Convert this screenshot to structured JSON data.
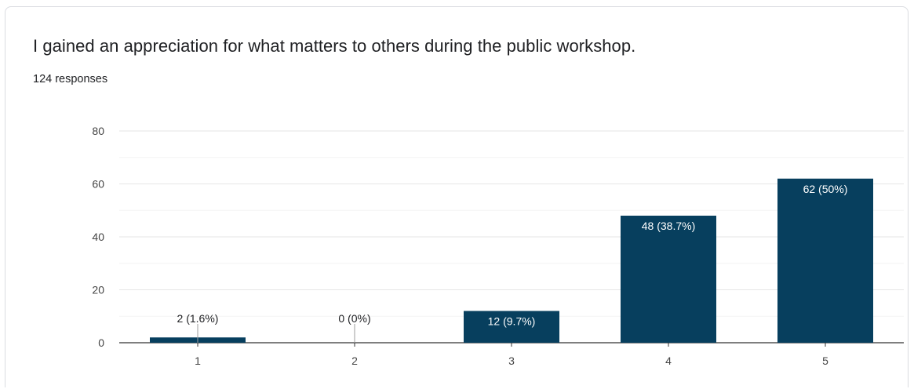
{
  "header": {
    "question": "I gained an appreciation for what matters to others during the public workshop.",
    "responses": "124 responses"
  },
  "colors": {
    "bar": "#073f5e",
    "grid": "#e6e6e6",
    "axis": "#333333"
  },
  "chart_data": {
    "type": "bar",
    "categories": [
      "1",
      "2",
      "3",
      "4",
      "5"
    ],
    "values": [
      2,
      0,
      12,
      48,
      62
    ],
    "data_labels": [
      "2 (1.6%)",
      "0 (0%)",
      "12 (9.7%)",
      "48 (38.7%)",
      "62 (50%)"
    ],
    "ylim": [
      0,
      80
    ],
    "yticks": [
      0,
      20,
      40,
      60,
      80
    ],
    "grid": true,
    "xlabel": "",
    "ylabel": ""
  }
}
